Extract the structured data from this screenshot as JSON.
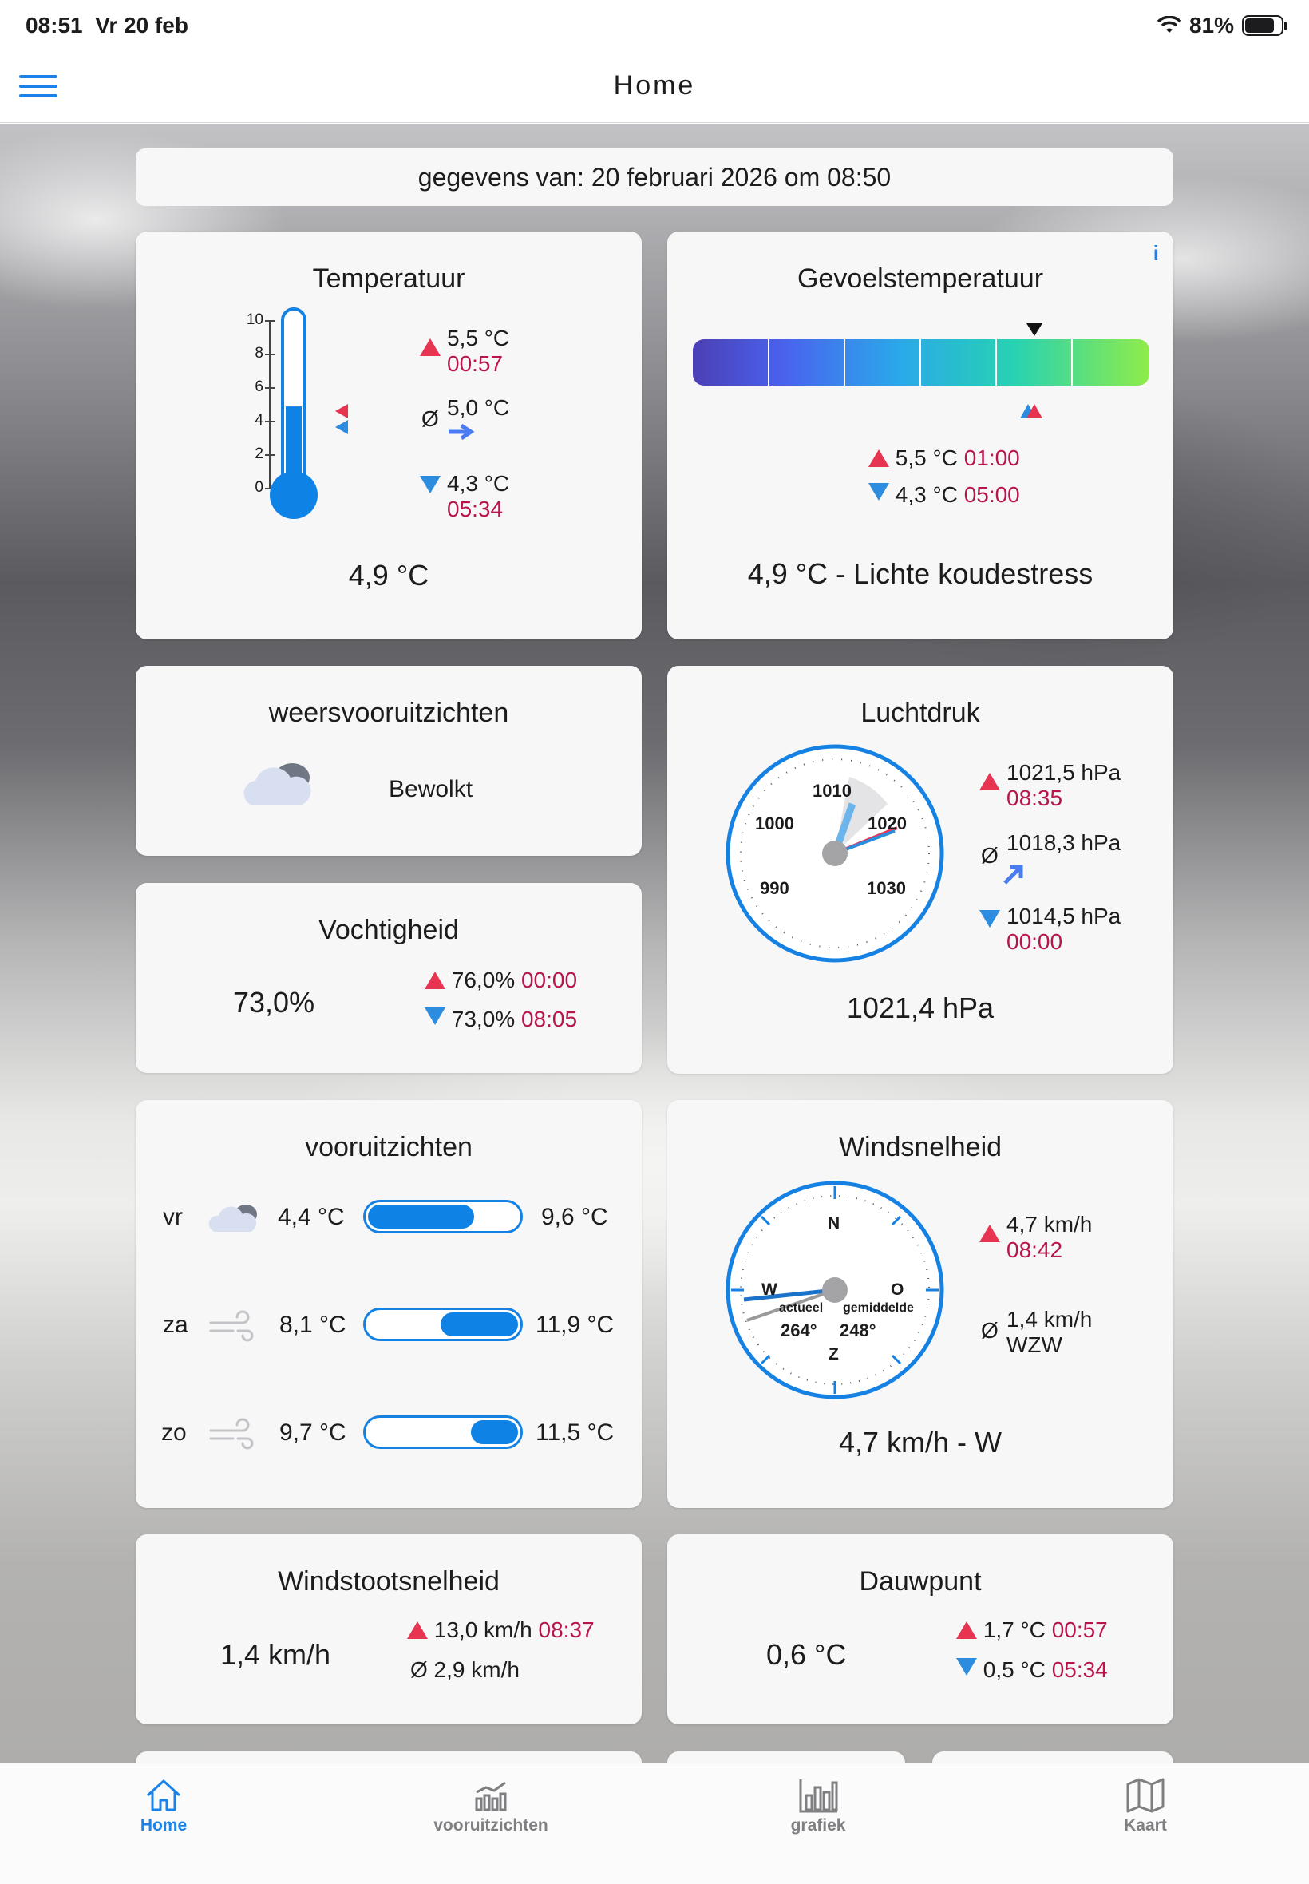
{
  "status": {
    "time": "08:51",
    "date": "Vr 20 feb",
    "battery": "81%"
  },
  "nav": {
    "title": "Home"
  },
  "dateinfo": "gegevens van: 20 februari 2026 om 08:50",
  "temperature": {
    "title": "Temperatuur",
    "scale": [
      "10",
      "8",
      "6",
      "4",
      "2",
      "0"
    ],
    "current": "4,9 °C",
    "fill_value": 4.9,
    "max": "5,5 °C",
    "max_time": "00:57",
    "avg_symbol": "Ø",
    "avg": "5,0 °C",
    "min": "4,3 °C",
    "min_time": "05:34"
  },
  "feels": {
    "title": "Gevoelstemperatuur",
    "info": "i",
    "max": "5,5 °C",
    "max_time": "01:00",
    "min": "4,3 °C",
    "min_time": "05:00",
    "summary": "4,9 °C - Lichte koudestress"
  },
  "forecast_now": {
    "title": "weersvooruitzichten",
    "condition": "Bewolkt"
  },
  "pressure": {
    "title": "Luchtdruk",
    "dial": [
      "1010",
      "1000",
      "1020",
      "990",
      "1030"
    ],
    "max": "1021,5 hPa",
    "max_time": "08:35",
    "avg_symbol": "Ø",
    "avg": "1018,3 hPa",
    "min": "1014,5 hPa",
    "min_time": "00:00",
    "current": "1021,4 hPa"
  },
  "humidity": {
    "title": "Vochtigheid",
    "current": "73,0%",
    "max": "76,0%",
    "max_time": "00:00",
    "min": "73,0%",
    "min_time": "08:05"
  },
  "forecast": {
    "title": "vooruitzichten",
    "days": [
      {
        "day": "vr",
        "min": "4,4 °C",
        "max": "9,6 °C",
        "icon": "cloud-icon"
      },
      {
        "day": "za",
        "min": "8,1 °C",
        "max": "11,9 °C",
        "icon": "wind-icon"
      },
      {
        "day": "zo",
        "min": "9,7 °C",
        "max": "11,5 °C",
        "icon": "wind-icon"
      }
    ]
  },
  "wind": {
    "title": "Windsnelheid",
    "compass": {
      "n": "N",
      "o": "O",
      "z": "Z",
      "w": "W"
    },
    "actual_label": "actueel",
    "avg_label": "gemiddelde",
    "actual_dir": "264°",
    "avg_dir": "248°",
    "max": "4,7 km/h",
    "max_time": "08:42",
    "avg_symbol": "Ø",
    "avg": "1,4 km/h",
    "avg_dir_text": "WZW",
    "current": "4,7 km/h - W"
  },
  "gust": {
    "title": "Windstootsnelheid",
    "current": "1,4 km/h",
    "max": "13,0 km/h",
    "max_time": "08:37",
    "avg": "Ø 2,9 km/h"
  },
  "dew": {
    "title": "Dauwpunt",
    "current": "0,6 °C",
    "max": "1,7 °C",
    "max_time": "00:57",
    "min": "0,5 °C",
    "min_time": "05:34"
  },
  "tabs": {
    "home": "Home",
    "forecast": "vooruitzichten",
    "chart": "grafiek",
    "map": "Kaart"
  },
  "colors": {
    "accent": "#1a82e8",
    "max": "#e63451",
    "min": "#2c8ce0",
    "time": "#b8154a"
  }
}
